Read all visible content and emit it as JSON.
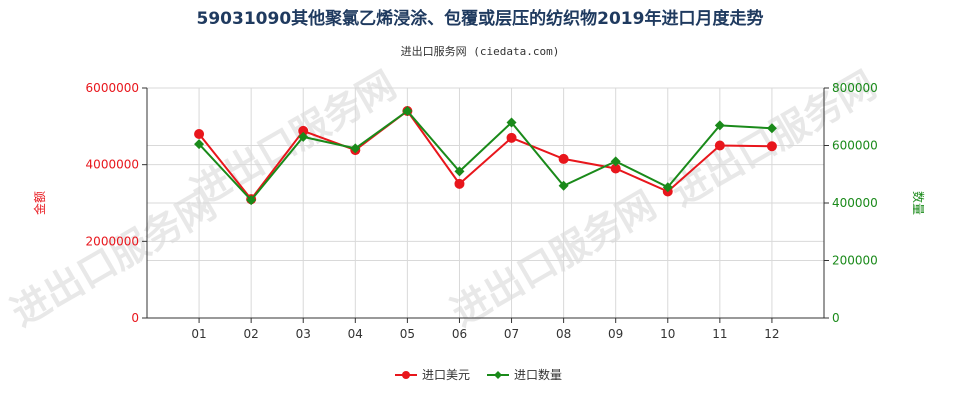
{
  "chart_data": {
    "type": "line",
    "title": "59031090其他聚氯乙烯浸涂、包覆或层压的纺织物2019年进口月度走势",
    "subtitle": "进出口服务网 (ciedata.com)",
    "categories": [
      "01",
      "02",
      "03",
      "04",
      "05",
      "06",
      "07",
      "08",
      "09",
      "10",
      "11",
      "12"
    ],
    "y_left": {
      "label": "金额",
      "min": 0,
      "max": 6000000,
      "ticks": [
        0,
        2000000,
        4000000,
        6000000
      ],
      "tick_labels": [
        "0",
        "2000000",
        "4000000",
        "6000000"
      ]
    },
    "y_right": {
      "label": "数量",
      "min": 0,
      "max": 800000,
      "ticks": [
        0,
        200000,
        400000,
        600000,
        800000
      ],
      "tick_labels": [
        "0",
        "200000",
        "400000",
        "600000",
        "800000"
      ]
    },
    "series": [
      {
        "name": "进口美元",
        "axis": "left",
        "color": "#e8161c",
        "values": [
          4800000,
          3100000,
          4880000,
          4380000,
          5400000,
          3500000,
          4700000,
          4150000,
          3900000,
          3300000,
          4500000,
          4480000
        ]
      },
      {
        "name": "进口数量",
        "axis": "right",
        "color": "#1a8a1a",
        "values": [
          605000,
          410000,
          630000,
          590000,
          720000,
          510000,
          680000,
          460000,
          545000,
          455000,
          670000,
          660000
        ]
      }
    ],
    "grid": true,
    "legend": "bottom-center"
  },
  "watermark": "进出口服务网"
}
